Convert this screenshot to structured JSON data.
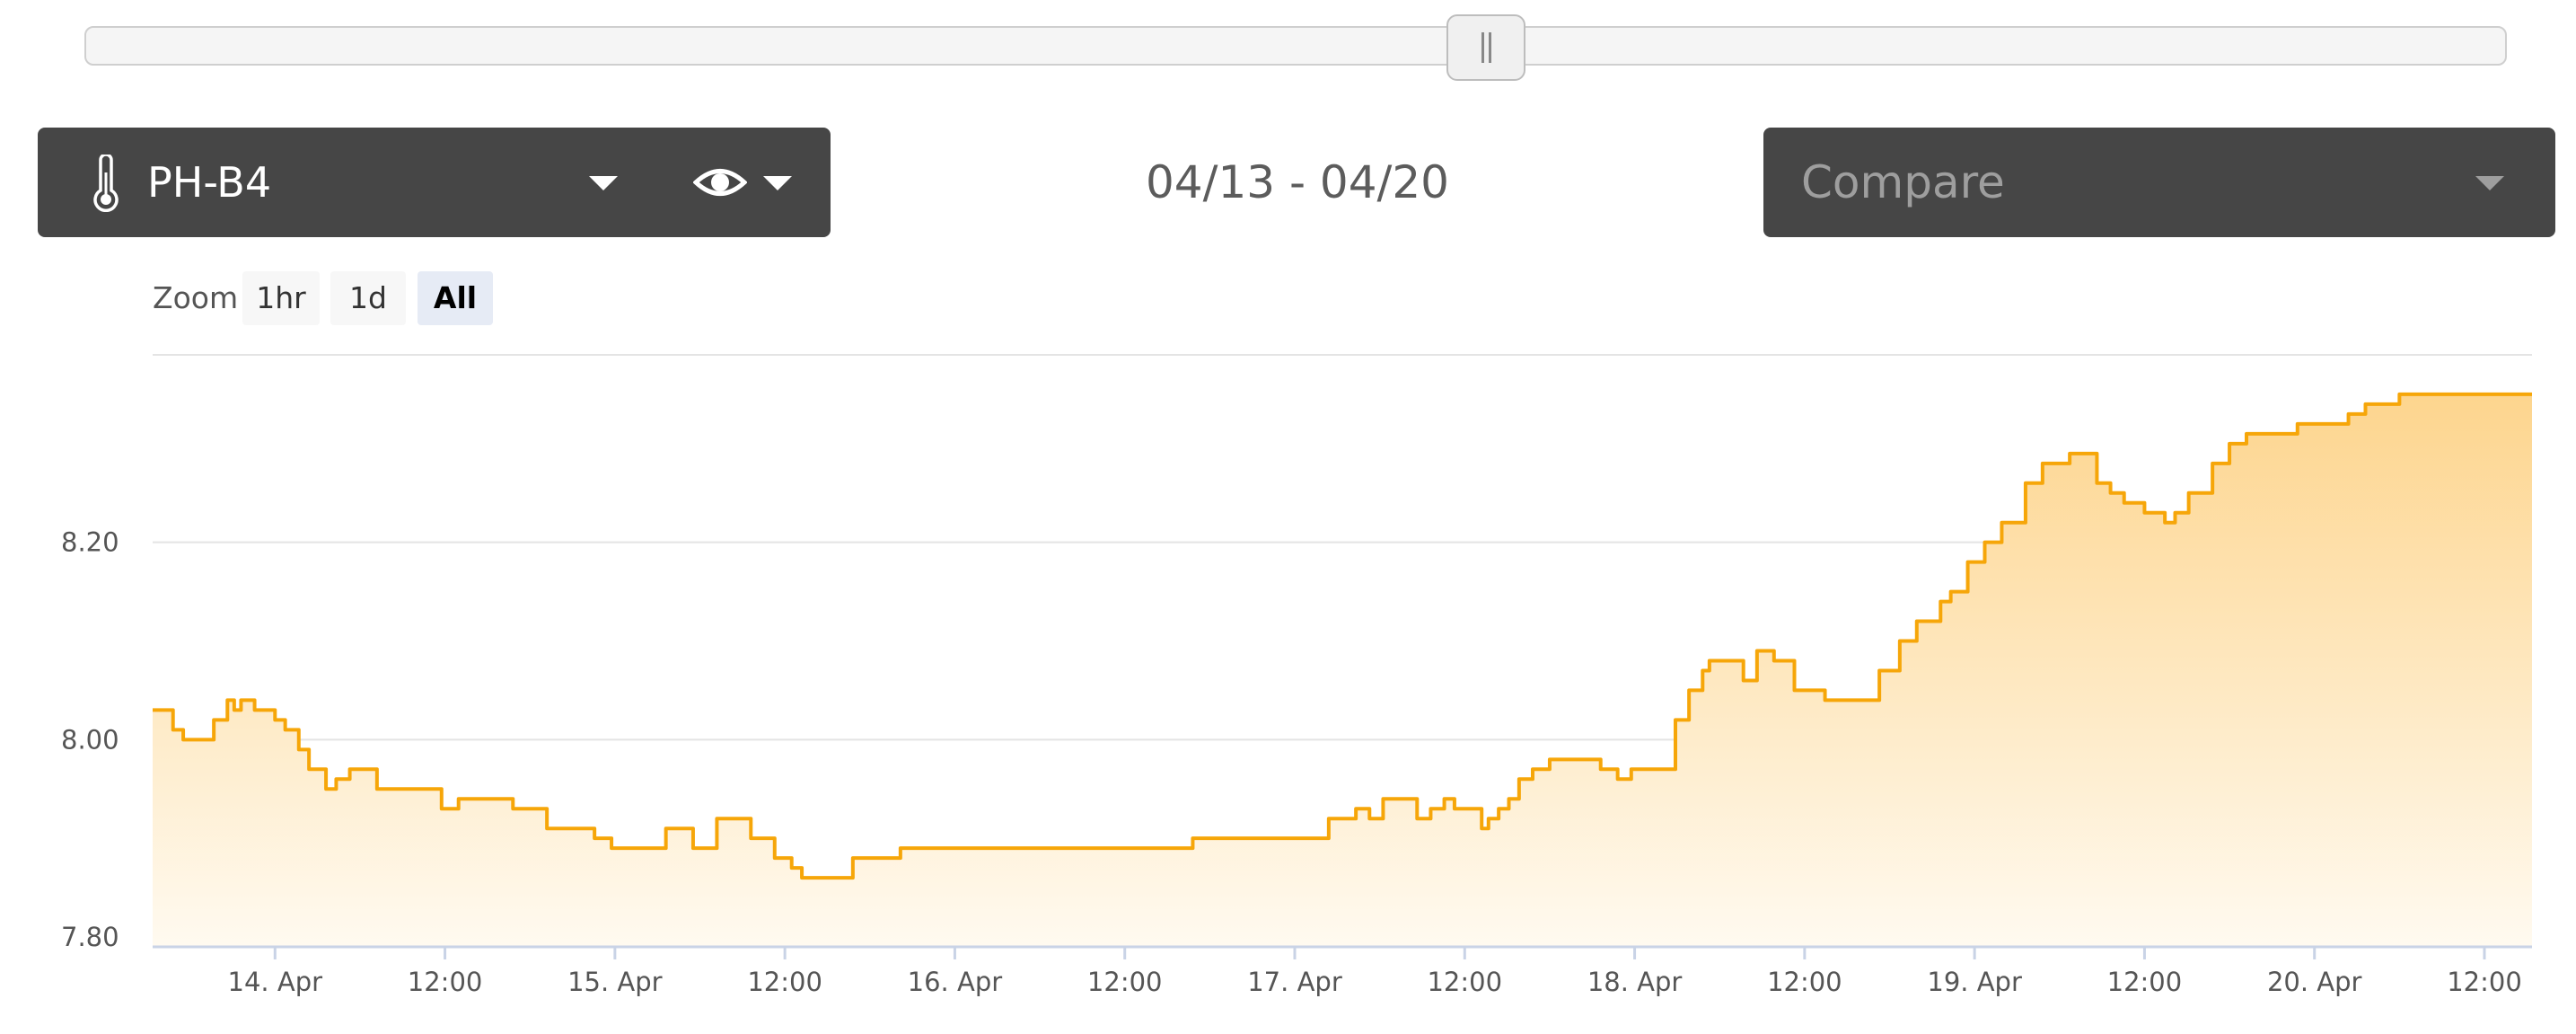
{
  "slider": {
    "handle_position": 0.5
  },
  "sensor": {
    "name": "PH-B4",
    "icon": "thermometer-icon",
    "view_icon": "eye-icon"
  },
  "date_range": "04/13 - 04/20",
  "compare": {
    "placeholder": "Compare"
  },
  "zoom": {
    "label": "Zoom",
    "buttons": [
      "1hr",
      "1d",
      "All"
    ],
    "selected": "All"
  },
  "colors": {
    "line": "#f6a609",
    "fill_top": "#fdd58e",
    "fill_bottom": "#fffaf0",
    "panel": "#464646"
  },
  "chart_data": {
    "type": "area",
    "title": "",
    "xlabel": "",
    "ylabel": "",
    "x_unit": "days since 13 Apr 00:00",
    "xlim": [
      0.64,
      7.64
    ],
    "ylim": [
      7.79,
      8.39
    ],
    "yticks": [
      7.8,
      8.0,
      8.2
    ],
    "ytick_labels": [
      "7.80",
      "8.00",
      "8.20"
    ],
    "xticks": [
      1.0,
      1.5,
      2.0,
      2.5,
      3.0,
      3.5,
      4.0,
      4.5,
      5.0,
      5.5,
      6.0,
      6.5,
      7.0,
      7.5
    ],
    "xtick_labels": [
      "14. Apr",
      "12:00",
      "15. Apr",
      "12:00",
      "16. Apr",
      "12:00",
      "17. Apr",
      "12:00",
      "18. Apr",
      "12:00",
      "19. Apr",
      "12:00",
      "20. Apr",
      "12:00"
    ],
    "grid": true,
    "legend": "none",
    "series": [
      {
        "x": [
          0.64,
          0.67,
          0.7,
          0.73,
          0.78,
          0.82,
          0.86,
          0.88,
          0.9,
          0.92,
          0.94,
          0.96,
          1.0,
          1.03,
          1.07,
          1.1,
          1.15,
          1.18,
          1.22,
          1.26,
          1.3,
          1.34,
          1.38,
          1.44,
          1.49,
          1.54,
          1.63,
          1.7,
          1.74,
          1.8,
          1.88,
          1.94,
          1.99,
          2.06,
          2.15,
          2.23,
          2.3,
          2.4,
          2.47,
          2.52,
          2.55,
          2.58,
          2.63,
          2.67,
          2.7,
          2.75,
          2.8,
          2.84,
          2.9,
          2.98,
          3.1,
          3.2,
          3.35,
          3.5,
          3.7,
          3.85,
          4.0,
          4.1,
          4.18,
          4.22,
          4.26,
          4.3,
          4.36,
          4.4,
          4.44,
          4.47,
          4.52,
          4.55,
          4.57,
          4.6,
          4.63,
          4.66,
          4.7,
          4.75,
          4.82,
          4.9,
          4.95,
          4.99,
          5.05,
          5.12,
          5.16,
          5.2,
          5.22,
          5.27,
          5.32,
          5.36,
          5.41,
          5.47,
          5.5,
          5.56,
          5.6,
          5.63,
          5.67,
          5.72,
          5.78,
          5.83,
          5.9,
          5.93,
          5.98,
          6.03,
          6.08,
          6.15,
          6.2,
          6.28,
          6.32,
          6.36,
          6.4,
          6.44,
          6.47,
          6.5,
          6.56,
          6.59,
          6.63,
          6.7,
          6.75,
          6.8,
          6.84,
          6.9,
          6.95,
          7.0,
          7.05,
          7.1,
          7.15,
          7.25,
          7.35,
          7.4,
          7.45,
          7.5,
          7.64
        ],
        "y": [
          8.03,
          8.03,
          8.01,
          8.0,
          8.0,
          8.02,
          8.04,
          8.03,
          8.04,
          8.04,
          8.03,
          8.03,
          8.02,
          8.01,
          7.99,
          7.97,
          7.95,
          7.96,
          7.97,
          7.97,
          7.95,
          7.95,
          7.95,
          7.95,
          7.93,
          7.94,
          7.94,
          7.93,
          7.93,
          7.91,
          7.91,
          7.9,
          7.89,
          7.89,
          7.91,
          7.89,
          7.92,
          7.9,
          7.88,
          7.87,
          7.86,
          7.86,
          7.86,
          7.86,
          7.88,
          7.88,
          7.88,
          7.89,
          7.89,
          7.89,
          7.89,
          7.89,
          7.89,
          7.89,
          7.9,
          7.9,
          7.9,
          7.92,
          7.93,
          7.92,
          7.94,
          7.94,
          7.92,
          7.93,
          7.94,
          7.93,
          7.93,
          7.91,
          7.92,
          7.93,
          7.94,
          7.96,
          7.97,
          7.98,
          7.98,
          7.97,
          7.96,
          7.97,
          7.97,
          8.02,
          8.05,
          8.07,
          8.08,
          8.08,
          8.06,
          8.09,
          8.08,
          8.05,
          8.05,
          8.04,
          8.04,
          8.04,
          8.04,
          8.07,
          8.1,
          8.12,
          8.14,
          8.15,
          8.18,
          8.2,
          8.22,
          8.26,
          8.28,
          8.29,
          8.29,
          8.26,
          8.25,
          8.24,
          8.24,
          8.23,
          8.22,
          8.23,
          8.25,
          8.28,
          8.3,
          8.31,
          8.31,
          8.31,
          8.32,
          8.32,
          8.32,
          8.33,
          8.34,
          8.35,
          8.35,
          8.35,
          8.35,
          8.35,
          8.35
        ]
      }
    ]
  }
}
